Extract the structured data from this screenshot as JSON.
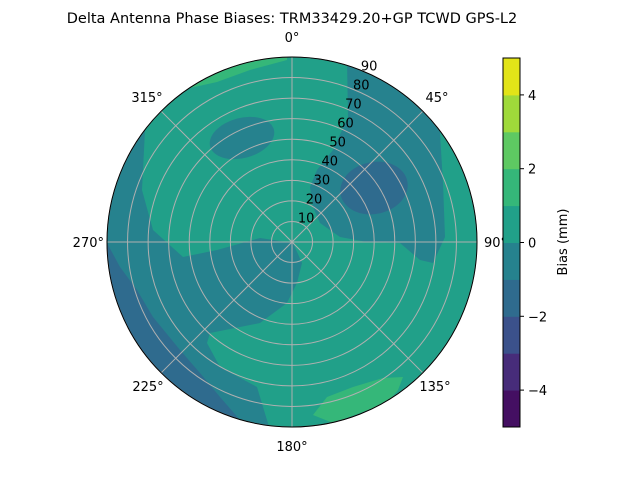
{
  "chart_data": {
    "type": "contour",
    "projection": "polar",
    "title": "Delta Antenna Phase Biases: TRM33429.20+GP  TCWD GPS-L2",
    "angular_ticks": [
      "0°",
      "45°",
      "90°",
      "135°",
      "180°",
      "225°",
      "270°",
      "315°"
    ],
    "radial_ticks": [
      "10",
      "20",
      "30",
      "40",
      "50",
      "60",
      "70",
      "80",
      "90"
    ],
    "radial_range": [
      0,
      90
    ],
    "grid": true,
    "colorbar": {
      "label": "Bias (mm)",
      "range": [
        -5,
        5
      ],
      "levels": [
        -5,
        -4,
        -3,
        -2,
        -1,
        0,
        1,
        2,
        3,
        4,
        5
      ],
      "ticks": [
        "−4",
        "−2",
        "0",
        "2",
        "4"
      ],
      "colormap": "viridis",
      "colors": [
        "#440f62",
        "#472c7a",
        "#3b518b",
        "#2f6b8e",
        "#26828e",
        "#21a089",
        "#35b779",
        "#5ec962",
        "#9fda3a",
        "#e2e418"
      ]
    },
    "regions": [
      {
        "bin": [
          0,
          1
        ],
        "description_level": "background"
      },
      {
        "bin": [
          -1,
          0
        ],
        "azimuth_deg": "20-90",
        "elevation_deg": "40-90"
      },
      {
        "bin": [
          -2,
          -1
        ],
        "azimuth_deg": "50-70",
        "elevation_deg": "45-70"
      },
      {
        "bin": [
          -1,
          0
        ],
        "azimuth_deg": "320-340",
        "elevation_deg": "40-60"
      },
      {
        "bin": [
          -1,
          0
        ],
        "azimuth_deg": "180-290",
        "elevation_deg": "0-90"
      },
      {
        "bin": [
          -2,
          -1
        ],
        "azimuth_deg": "200-270",
        "elevation_deg": "80-90"
      },
      {
        "bin": [
          1,
          2
        ],
        "azimuth_deg": "345-360",
        "elevation_deg": "80-90"
      },
      {
        "bin": [
          1,
          2
        ],
        "azimuth_deg": "145-165",
        "elevation_deg": "75-90"
      }
    ]
  }
}
